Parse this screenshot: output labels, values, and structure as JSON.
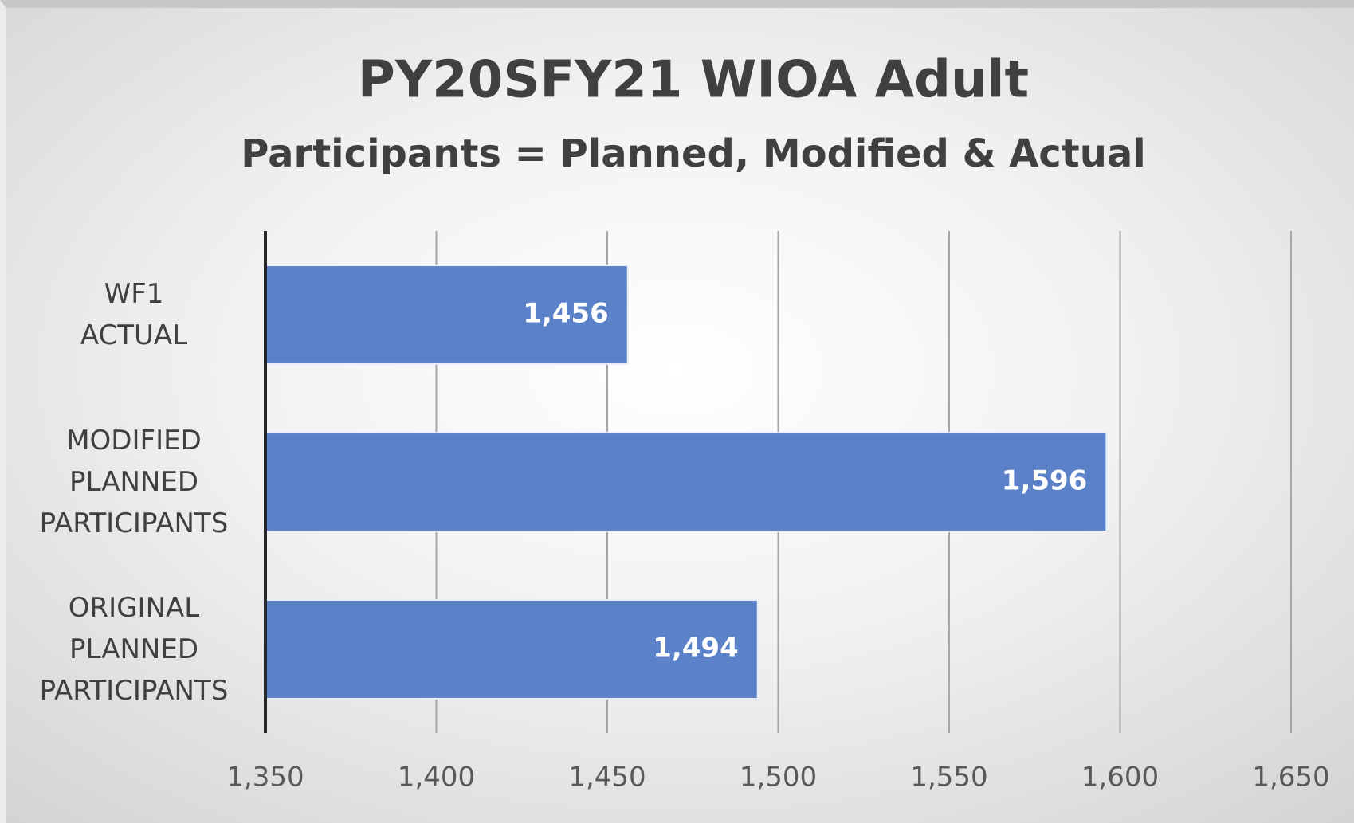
{
  "chart_data": {
    "type": "barh",
    "title": "PY20SFY21 WIOA Adult",
    "subtitle": "Participants = Planned, Modified & Actual",
    "categories": [
      "WF1 ACTUAL",
      "MODIFIED PLANNED PARTICIPANTS",
      "ORIGINAL PLANNED PARTICIPANTS"
    ],
    "values": [
      1456,
      1596,
      1494
    ],
    "value_labels": [
      "1,456",
      "1,596",
      "1,494"
    ],
    "color": "#5b82c9",
    "xlim": [
      1350,
      1650
    ],
    "xticks": [
      {
        "value": 1350,
        "label": "1,350"
      },
      {
        "value": 1400,
        "label": "1,400"
      },
      {
        "value": 1450,
        "label": "1,450"
      },
      {
        "value": 1500,
        "label": "1,500"
      },
      {
        "value": 1550,
        "label": "1,550"
      },
      {
        "value": 1600,
        "label": "1,600"
      },
      {
        "value": 1650,
        "label": "1,650"
      }
    ],
    "grid": true
  }
}
